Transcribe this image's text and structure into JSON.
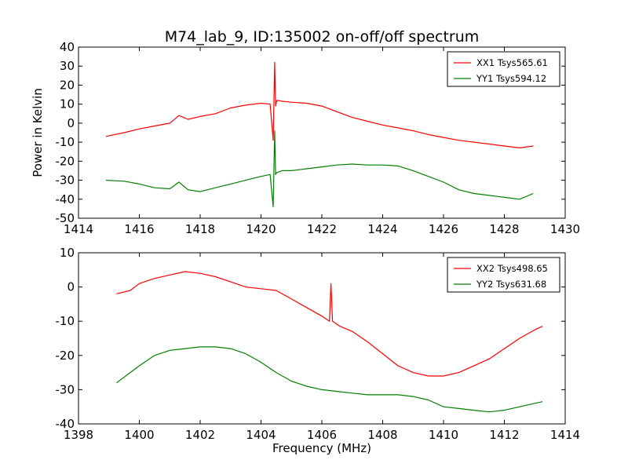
{
  "title": "M74_lab_9, ID:135002 on-off/off spectrum",
  "chart_data": [
    {
      "type": "line",
      "title": "M74_lab_9, ID:135002 on-off/off spectrum",
      "xlabel": "",
      "ylabel": "Power in Kelvin",
      "xlim": [
        1414,
        1430
      ],
      "ylim": [
        -50,
        40
      ],
      "xticks": [
        1414,
        1416,
        1418,
        1420,
        1422,
        1424,
        1426,
        1428,
        1430
      ],
      "yticks": [
        -50,
        -40,
        -30,
        -20,
        -10,
        0,
        10,
        20,
        30,
        40
      ],
      "grid": false,
      "legend_position": "top-right",
      "series": [
        {
          "name": "XX1 Tsys565.61",
          "color": "#ff0000",
          "x": [
            1414.9,
            1415.5,
            1416.0,
            1416.5,
            1417.0,
            1417.3,
            1417.6,
            1418.0,
            1418.5,
            1419.0,
            1419.5,
            1420.0,
            1420.3,
            1420.4,
            1420.45,
            1420.48,
            1420.52,
            1420.7,
            1421.0,
            1421.5,
            1422.0,
            1422.5,
            1423.0,
            1423.5,
            1424.0,
            1424.5,
            1425.0,
            1425.5,
            1426.0,
            1426.5,
            1427.0,
            1427.5,
            1428.0,
            1428.5,
            1428.95
          ],
          "y": [
            -7,
            -5,
            -3,
            -1.5,
            0,
            4,
            2,
            3.5,
            5,
            8,
            9.5,
            10.5,
            10,
            -9,
            32,
            9,
            12,
            11.5,
            11,
            10.5,
            9,
            6,
            3,
            1,
            -1,
            -2.5,
            -4,
            -6,
            -7.5,
            -9,
            -10,
            -11,
            -12,
            -13,
            -12
          ]
        },
        {
          "name": "YY1 Tsys594.12",
          "color": "#008000",
          "x": [
            1414.9,
            1415.5,
            1416.0,
            1416.5,
            1417.0,
            1417.3,
            1417.6,
            1418.0,
            1418.5,
            1419.0,
            1419.5,
            1420.0,
            1420.3,
            1420.4,
            1420.45,
            1420.48,
            1420.52,
            1420.7,
            1421.0,
            1421.5,
            1422.0,
            1422.5,
            1423.0,
            1423.5,
            1424.0,
            1424.5,
            1425.0,
            1425.5,
            1426.0,
            1426.5,
            1427.0,
            1427.5,
            1428.0,
            1428.5,
            1428.95
          ],
          "y": [
            -30,
            -30.5,
            -32,
            -34,
            -34.5,
            -31,
            -35,
            -36,
            -34,
            -32,
            -30,
            -28,
            -27,
            -44,
            -4,
            -27,
            -26,
            -25,
            -25,
            -24,
            -23,
            -22,
            -21.5,
            -22,
            -22,
            -22.5,
            -25,
            -28,
            -31,
            -35,
            -37,
            -38,
            -39,
            -40,
            -37
          ]
        }
      ]
    },
    {
      "type": "line",
      "title": "",
      "xlabel": "Frequency (MHz)",
      "ylabel": "",
      "xlim": [
        1398,
        1414
      ],
      "ylim": [
        -40,
        10
      ],
      "xticks": [
        1398,
        1400,
        1402,
        1404,
        1406,
        1408,
        1410,
        1412,
        1414
      ],
      "yticks": [
        -40,
        -30,
        -20,
        -10,
        0,
        10
      ],
      "grid": false,
      "legend_position": "top-right",
      "series": [
        {
          "name": "XX2 Tsys498.65",
          "color": "#ff0000",
          "x": [
            1399.25,
            1399.7,
            1400.0,
            1400.5,
            1401.0,
            1401.5,
            1402.0,
            1402.5,
            1403.0,
            1403.5,
            1404.0,
            1404.5,
            1405.0,
            1405.5,
            1406.0,
            1406.25,
            1406.3,
            1406.35,
            1406.6,
            1407.0,
            1407.5,
            1408.0,
            1408.5,
            1409.0,
            1409.5,
            1410.0,
            1410.5,
            1411.0,
            1411.5,
            1412.0,
            1412.5,
            1413.0,
            1413.25
          ],
          "y": [
            -2,
            -1,
            1,
            2.5,
            3.5,
            4.5,
            4,
            3,
            1.5,
            0,
            -0.5,
            -1,
            -3.5,
            -6,
            -8.5,
            -10,
            1,
            -10,
            -11.5,
            -13,
            -16,
            -19.5,
            -23,
            -25,
            -26,
            -26,
            -25,
            -23,
            -21,
            -18,
            -15,
            -12.5,
            -11.5
          ]
        },
        {
          "name": "YY2 Tsys631.68",
          "color": "#008000",
          "x": [
            1399.25,
            1399.7,
            1400.0,
            1400.5,
            1401.0,
            1401.5,
            1402.0,
            1402.5,
            1403.0,
            1403.5,
            1404.0,
            1404.5,
            1405.0,
            1405.5,
            1406.0,
            1406.5,
            1407.0,
            1407.5,
            1408.0,
            1408.5,
            1409.0,
            1409.5,
            1410.0,
            1410.5,
            1411.0,
            1411.5,
            1412.0,
            1412.5,
            1413.0,
            1413.25
          ],
          "y": [
            -28,
            -25,
            -23,
            -20,
            -18.5,
            -18,
            -17.5,
            -17.5,
            -18,
            -19.5,
            -22,
            -25,
            -27.5,
            -29,
            -30,
            -30.5,
            -31,
            -31.5,
            -31.5,
            -31.5,
            -32,
            -33,
            -35,
            -35.5,
            -36,
            -36.5,
            -36,
            -35,
            -34,
            -33.5
          ]
        }
      ]
    }
  ]
}
